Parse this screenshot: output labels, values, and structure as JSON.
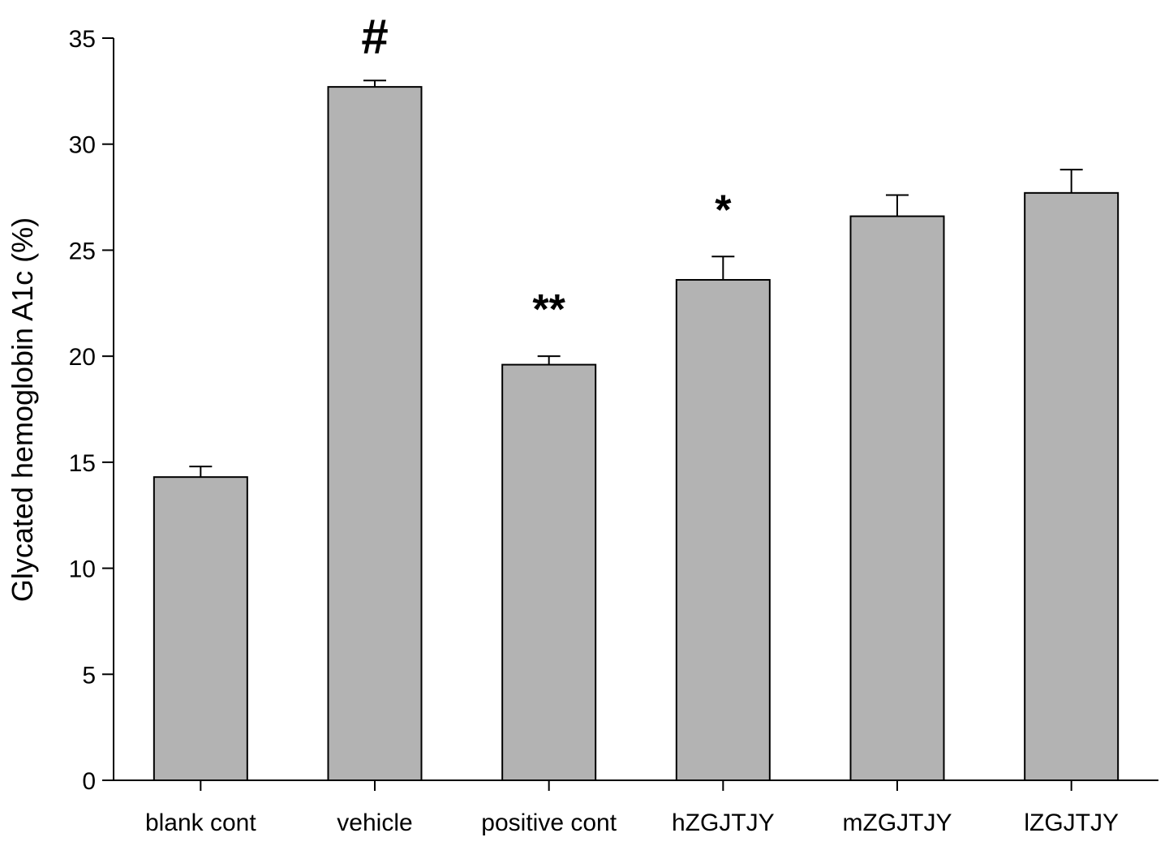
{
  "chart_data": {
    "type": "bar",
    "title": "",
    "xlabel": "",
    "ylabel": "Glycated hemoglobin A1c (%)",
    "ylim": [
      0,
      35
    ],
    "yticks": [
      0,
      5,
      10,
      15,
      20,
      25,
      30,
      35
    ],
    "grid": false,
    "legend": "none",
    "categories": [
      "blank cont",
      "vehicle",
      "positive cont",
      "hZGJTJY",
      "mZGJTJY",
      "lZGJTJY"
    ],
    "values": [
      14.3,
      32.7,
      19.6,
      23.6,
      26.6,
      27.7
    ],
    "error_upper": [
      0.5,
      0.3,
      0.4,
      1.1,
      1.0,
      1.1
    ],
    "annotations": [
      "",
      "#",
      "**",
      "*",
      "",
      ""
    ],
    "colors": {
      "bar_fill": "#b3b3b3",
      "bar_stroke": "#000000",
      "axis": "#000000"
    }
  }
}
